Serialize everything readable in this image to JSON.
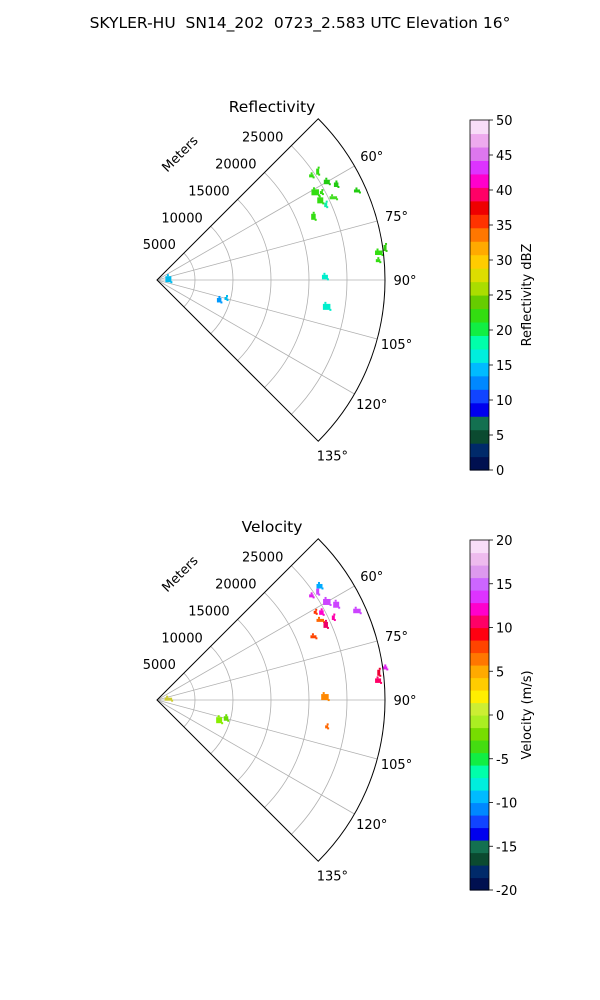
{
  "title": "SKYLER-HU  SN14_202  0723_2.583 UTC Elevation 16°",
  "chart_data": [
    {
      "type": "polar-sector",
      "title": "Reflectivity",
      "radial_label": "Meters",
      "radial_ticks": [
        5000,
        10000,
        15000,
        20000,
        25000
      ],
      "r_max": 30000,
      "theta_range_deg": [
        45,
        135
      ],
      "angle_ticks": [
        60,
        75,
        90,
        105,
        120,
        135
      ],
      "grid": true,
      "colorbar": {
        "label": "Reflectivity dBZ",
        "min": 0,
        "max": 50,
        "ticks": [
          0,
          5,
          10,
          15,
          20,
          25,
          30,
          35,
          40,
          45,
          50
        ]
      },
      "echoes": [
        {
          "azimuth": 56,
          "range": 25500,
          "value": 18,
          "color": "#33dd11"
        },
        {
          "azimuth": 56,
          "range": 24500,
          "value": 17,
          "color": "#33dd11"
        },
        {
          "azimuth": 60,
          "range": 25800,
          "value": 18,
          "color": "#22cc11"
        },
        {
          "azimuth": 61,
          "range": 23800,
          "value": 17,
          "color": "#33dd11"
        },
        {
          "azimuth": 62,
          "range": 24500,
          "value": 19,
          "color": "#33dd11"
        },
        {
          "azimuth": 62,
          "range": 26700,
          "value": 18,
          "color": "#22cc11"
        },
        {
          "azimuth": 64,
          "range": 23900,
          "value": 17,
          "color": "#33dd11"
        },
        {
          "azimuth": 65,
          "range": 25600,
          "value": 18,
          "color": "#44dd22"
        },
        {
          "azimuth": 66,
          "range": 24300,
          "value": 15,
          "color": "#11eeaa"
        },
        {
          "azimuth": 68,
          "range": 22200,
          "value": 18,
          "color": "#33dd11"
        },
        {
          "azimuth": 66,
          "range": 28800,
          "value": 16,
          "color": "#22cc11"
        },
        {
          "azimuth": 83,
          "range": 29400,
          "value": 18,
          "color": "#33dd11"
        },
        {
          "azimuth": 82,
          "range": 30300,
          "value": 19,
          "color": "#33cc11"
        },
        {
          "azimuth": 85,
          "range": 29200,
          "value": 18,
          "color": "#33dd11"
        },
        {
          "azimuth": 89,
          "range": 22100,
          "value": 12,
          "color": "#00eecc"
        },
        {
          "azimuth": 99,
          "range": 22600,
          "value": 12,
          "color": "#00eecc"
        },
        {
          "azimuth": 105,
          "range": 9400,
          "value": 10,
          "color": "#00bbee"
        },
        {
          "azimuth": 108,
          "range": 8600,
          "value": 8,
          "color": "#0099ff"
        },
        {
          "azimuth": 86,
          "range": 1500,
          "value": 10,
          "color": "#00bbee"
        }
      ]
    },
    {
      "type": "polar-sector",
      "title": "Velocity",
      "radial_label": "Meters",
      "radial_ticks": [
        5000,
        10000,
        15000,
        20000,
        25000
      ],
      "r_max": 30000,
      "theta_range_deg": [
        45,
        135
      ],
      "angle_ticks": [
        60,
        75,
        90,
        105,
        120,
        135
      ],
      "grid": true,
      "colorbar": {
        "label": "Velocity (m/s)",
        "min": -20,
        "max": 20,
        "ticks": [
          -20,
          -15,
          -10,
          -5,
          0,
          5,
          10,
          15,
          20
        ]
      },
      "echoes": [
        {
          "azimuth": 56,
          "range": 25500,
          "value": 15,
          "color": "#cc44ff"
        },
        {
          "azimuth": 56,
          "range": 24500,
          "value": 14,
          "color": "#dd22ee"
        },
        {
          "azimuth": 55,
          "range": 26100,
          "value": -12,
          "color": "#00aaff"
        },
        {
          "azimuth": 60,
          "range": 25800,
          "value": 16,
          "color": "#cc44ff"
        },
        {
          "azimuth": 61,
          "range": 23800,
          "value": 9,
          "color": "#ff3300"
        },
        {
          "azimuth": 62,
          "range": 24500,
          "value": 14,
          "color": "#ff00cc"
        },
        {
          "azimuth": 62,
          "range": 26700,
          "value": 17,
          "color": "#cc44ff"
        },
        {
          "azimuth": 64,
          "range": 23900,
          "value": 7,
          "color": "#ff6600"
        },
        {
          "azimuth": 65,
          "range": 25600,
          "value": 13,
          "color": "#ff00aa"
        },
        {
          "azimuth": 66,
          "range": 24300,
          "value": 11,
          "color": "#ee0066"
        },
        {
          "azimuth": 68,
          "range": 22200,
          "value": 8,
          "color": "#ff4400"
        },
        {
          "azimuth": 66,
          "range": 28800,
          "value": 16,
          "color": "#cc44ff"
        },
        {
          "azimuth": 83,
          "range": 29400,
          "value": 11,
          "color": "#ee0033"
        },
        {
          "azimuth": 82,
          "range": 30300,
          "value": 15,
          "color": "#dd22ee"
        },
        {
          "azimuth": 85,
          "range": 29200,
          "value": 12,
          "color": "#ff0066"
        },
        {
          "azimuth": 89,
          "range": 22100,
          "value": 7,
          "color": "#ff8800"
        },
        {
          "azimuth": 99,
          "range": 22600,
          "value": 7,
          "color": "#ff6600"
        },
        {
          "azimuth": 105,
          "range": 9400,
          "value": -4,
          "color": "#66dd00"
        },
        {
          "azimuth": 108,
          "range": 8600,
          "value": -3,
          "color": "#88ee00"
        },
        {
          "azimuth": 86,
          "range": 1500,
          "value": 0,
          "color": "#cccc33"
        }
      ]
    }
  ],
  "colormaps": {
    "reflectivity": [
      "#001050",
      "#002a6a",
      "#0b4a30",
      "#137050",
      "#0000ee",
      "#1144ff",
      "#0088ff",
      "#00bbff",
      "#00eedd",
      "#00ffaa",
      "#11ee44",
      "#33dd11",
      "#66cc00",
      "#aadd00",
      "#dddd00",
      "#ffcc00",
      "#ffaa00",
      "#ff7700",
      "#ff3300",
      "#ee0000",
      "#ff0066",
      "#ff00cc",
      "#dd33ff",
      "#dd77ee",
      "#eeaaee",
      "#f8ddf8"
    ],
    "velocity": [
      "#001050",
      "#002a6a",
      "#0b4a30",
      "#137050",
      "#0000ee",
      "#1144ff",
      "#0088ff",
      "#00bbff",
      "#00eedd",
      "#00ffaa",
      "#11ee44",
      "#44dd11",
      "#77dd00",
      "#aaee22",
      "#ccee33",
      "#ffee00",
      "#ffcc00",
      "#ffaa00",
      "#ff7700",
      "#ff4400",
      "#ff0011",
      "#ff0066",
      "#ff00cc",
      "#dd33ff",
      "#cc66ff",
      "#dd99ee",
      "#eebbee",
      "#f8ddf8"
    ]
  }
}
